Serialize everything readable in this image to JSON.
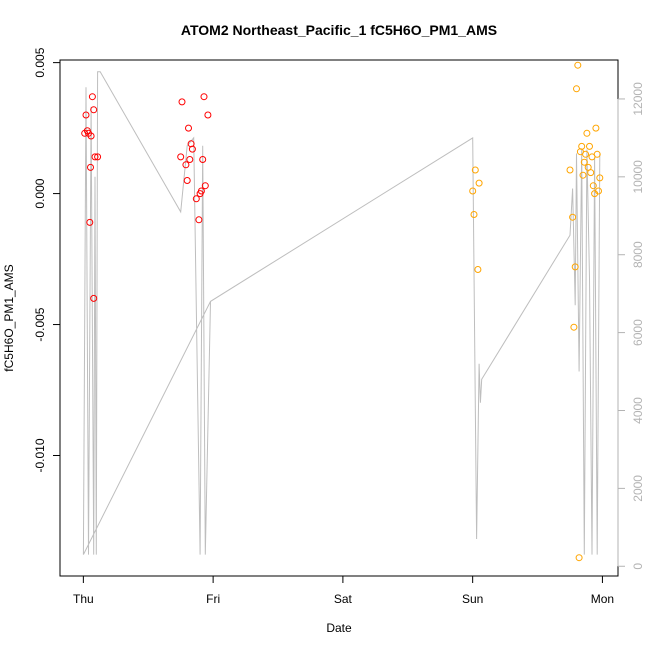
{
  "chart_data": {
    "type": "scatter",
    "title": "ATOM2 Northeast_Pacific_1 fC5H6O_PM1_AMS",
    "xlabel": "Date",
    "ylabel": "fC5H6O_PM1_AMS",
    "x_unit": "days from Thu 00:00",
    "xlim": [
      -0.18,
      4.12
    ],
    "ylim": [
      -0.0146,
      0.0051
    ],
    "y2lim": [
      -250,
      13000
    ],
    "x_ticks": [
      {
        "value": 0,
        "label": "Thu"
      },
      {
        "value": 1,
        "label": "Fri"
      },
      {
        "value": 2,
        "label": "Sat"
      },
      {
        "value": 3,
        "label": "Sun"
      },
      {
        "value": 4,
        "label": "Mon"
      }
    ],
    "y_ticks": [
      {
        "value": 0.005,
        "label": "0.005"
      },
      {
        "value": 0.0,
        "label": "0.000"
      },
      {
        "value": -0.005,
        "label": "-0.005"
      },
      {
        "value": -0.01,
        "label": "-0.010"
      }
    ],
    "y2_ticks": [
      {
        "value": 0,
        "label": "0"
      },
      {
        "value": 2000,
        "label": "2000"
      },
      {
        "value": 4000,
        "label": "4000"
      },
      {
        "value": 6000,
        "label": "6000"
      },
      {
        "value": 8000,
        "label": "8000"
      },
      {
        "value": 10000,
        "label": "10000"
      },
      {
        "value": 12000,
        "label": "12000"
      }
    ],
    "colors": {
      "series_red": "#ff0000",
      "series_orange": "#ffa500",
      "line": "#bebebe",
      "right_axis": "#b3b3b3",
      "axis": "#000000"
    },
    "series": [
      {
        "color": "#ff0000",
        "points": [
          {
            "x": 0.01,
            "y": 0.0023
          },
          {
            "x": 0.02,
            "y": 0.003
          },
          {
            "x": 0.03,
            "y": 0.0024
          },
          {
            "x": 0.04,
            "y": 0.0023
          },
          {
            "x": 0.05,
            "y": -0.0011
          },
          {
            "x": 0.06,
            "y": 0.0022
          },
          {
            "x": 0.055,
            "y": 0.001
          },
          {
            "x": 0.07,
            "y": 0.0037
          },
          {
            "x": 0.08,
            "y": 0.0032
          },
          {
            "x": 0.08,
            "y": -0.004
          },
          {
            "x": 0.09,
            "y": 0.0014
          },
          {
            "x": 0.11,
            "y": 0.0014
          },
          {
            "x": 0.75,
            "y": 0.0014
          },
          {
            "x": 0.76,
            "y": 0.0035
          },
          {
            "x": 0.79,
            "y": 0.0011
          },
          {
            "x": 0.8,
            "y": 0.0005
          },
          {
            "x": 0.81,
            "y": 0.0025
          },
          {
            "x": 0.82,
            "y": 0.0013
          },
          {
            "x": 0.83,
            "y": 0.0019
          },
          {
            "x": 0.84,
            "y": 0.0017
          },
          {
            "x": 0.87,
            "y": -0.0002
          },
          {
            "x": 0.89,
            "y": -0.001
          },
          {
            "x": 0.9,
            "y": 0.0
          },
          {
            "x": 0.91,
            "y": 0.0001
          },
          {
            "x": 0.92,
            "y": 0.0013
          },
          {
            "x": 0.93,
            "y": 0.0037
          },
          {
            "x": 0.94,
            "y": 0.0003
          },
          {
            "x": 0.96,
            "y": 0.003
          }
        ]
      },
      {
        "color": "#ffa500",
        "points": [
          {
            "x": 3.0,
            "y": 0.0001
          },
          {
            "x": 3.01,
            "y": -0.0008
          },
          {
            "x": 3.02,
            "y": 0.0009
          },
          {
            "x": 3.04,
            "y": -0.0029
          },
          {
            "x": 3.05,
            "y": 0.0004
          },
          {
            "x": 3.75,
            "y": 0.0009
          },
          {
            "x": 3.77,
            "y": -0.0009
          },
          {
            "x": 3.78,
            "y": -0.0051
          },
          {
            "x": 3.79,
            "y": -0.0028
          },
          {
            "x": 3.8,
            "y": 0.004
          },
          {
            "x": 3.81,
            "y": 0.0049
          },
          {
            "x": 3.82,
            "y": -0.0139
          },
          {
            "x": 3.83,
            "y": 0.0016
          },
          {
            "x": 3.84,
            "y": 0.0018
          },
          {
            "x": 3.85,
            "y": 0.0007
          },
          {
            "x": 3.86,
            "y": 0.0012
          },
          {
            "x": 3.87,
            "y": 0.0015
          },
          {
            "x": 3.88,
            "y": 0.0023
          },
          {
            "x": 3.89,
            "y": 0.001
          },
          {
            "x": 3.9,
            "y": 0.0018
          },
          {
            "x": 3.91,
            "y": 0.0008
          },
          {
            "x": 3.92,
            "y": 0.0014
          },
          {
            "x": 3.93,
            "y": 0.0003
          },
          {
            "x": 3.94,
            "y": 0.0
          },
          {
            "x": 3.95,
            "y": 0.0025
          },
          {
            "x": 3.96,
            "y": 0.0015
          },
          {
            "x": 3.97,
            "y": 0.0001
          },
          {
            "x": 3.98,
            "y": 0.0006
          }
        ]
      }
    ],
    "line_series": {
      "axis": "right",
      "color": "#bebebe",
      "points": [
        {
          "x": 0.0,
          "y": 300
        },
        {
          "x": 0.02,
          "y": 12300
        },
        {
          "x": 0.04,
          "y": 300
        },
        {
          "x": 0.06,
          "y": 11800
        },
        {
          "x": 0.08,
          "y": 300
        },
        {
          "x": 0.09,
          "y": 10000
        },
        {
          "x": 0.1,
          "y": 300
        },
        {
          "x": 0.11,
          "y": 12700
        },
        {
          "x": 0.13,
          "y": 12700
        },
        {
          "x": 0.75,
          "y": 9100
        },
        {
          "x": 0.8,
          "y": 10800
        },
        {
          "x": 0.85,
          "y": 11000
        },
        {
          "x": 0.9,
          "y": 300
        },
        {
          "x": 0.92,
          "y": 10800
        },
        {
          "x": 0.94,
          "y": 300
        },
        {
          "x": 0.98,
          "y": 6800
        },
        {
          "x": 0.0,
          "y": 300
        },
        {
          "x": 0.98,
          "y": 6800
        },
        {
          "x": 3.0,
          "y": 11000
        },
        {
          "x": 3.03,
          "y": 700
        },
        {
          "x": 3.05,
          "y": 5200
        },
        {
          "x": 3.06,
          "y": 4200
        },
        {
          "x": 3.07,
          "y": 4800
        },
        {
          "x": 3.75,
          "y": 8500
        },
        {
          "x": 3.77,
          "y": 9700
        },
        {
          "x": 3.79,
          "y": 6700
        },
        {
          "x": 3.8,
          "y": 10600
        },
        {
          "x": 3.82,
          "y": 5000
        },
        {
          "x": 3.84,
          "y": 10700
        },
        {
          "x": 3.86,
          "y": 300
        },
        {
          "x": 3.88,
          "y": 10700
        },
        {
          "x": 3.9,
          "y": 7400
        },
        {
          "x": 3.92,
          "y": 300
        },
        {
          "x": 3.94,
          "y": 10500
        },
        {
          "x": 3.96,
          "y": 300
        },
        {
          "x": 3.98,
          "y": 10600
        }
      ]
    }
  }
}
